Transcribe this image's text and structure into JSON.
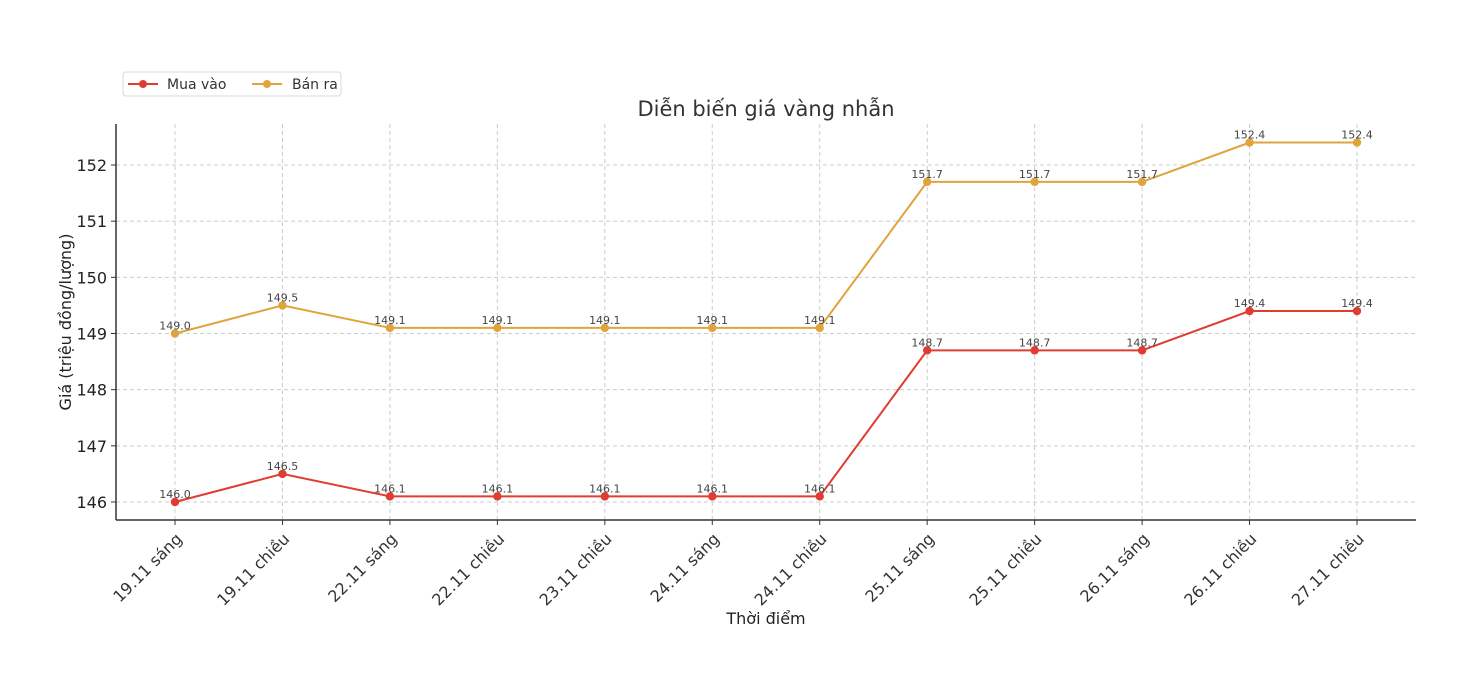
{
  "chart_data": {
    "type": "line",
    "title": "Diễn biến giá vàng nhẫn",
    "xlabel": "Thời điểm",
    "ylabel": "Giá (triệu đồng/lượng)",
    "categories": [
      "19.11 sáng",
      "19.11 chiều",
      "22.11 sáng",
      "22.11 chiều",
      "23.11 chiều",
      "24.11 sáng",
      "24.11 chiều",
      "25.11 sáng",
      "25.11 chiều",
      "26.11 sáng",
      "26.11 chiều",
      "27.11 chiều"
    ],
    "series": [
      {
        "name": "Mua vào",
        "color": "#e03c31",
        "values": [
          146.0,
          146.5,
          146.1,
          146.1,
          146.1,
          146.1,
          146.1,
          148.7,
          148.7,
          148.7,
          149.4,
          149.4
        ]
      },
      {
        "name": "Bán ra",
        "color": "#e0a43c",
        "values": [
          149.0,
          149.5,
          149.1,
          149.1,
          149.1,
          149.1,
          149.1,
          151.7,
          151.7,
          151.7,
          152.4,
          152.4
        ]
      }
    ],
    "yticks": [
      146,
      147,
      148,
      149,
      150,
      151,
      152
    ],
    "ylim": [
      145.67,
      152.73
    ],
    "grid": true,
    "legend_position": "upper left (outside, above plot)",
    "data_labels": true
  }
}
